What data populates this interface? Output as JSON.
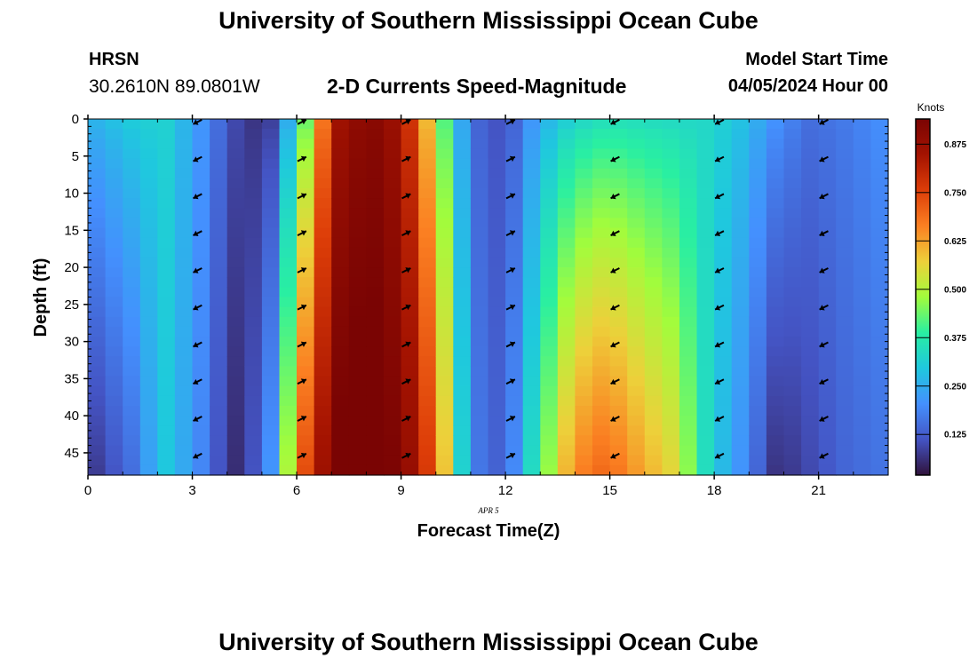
{
  "header": {
    "title": "University of Southern Mississippi Ocean Cube",
    "footer_title": "University of Southern Mississippi Ocean Cube",
    "station": "HRSN",
    "coords": "30.2610N  89.0801W",
    "subtitle": "2-D Currents Speed-Magnitude",
    "model_start_label": "Model Start Time",
    "model_start_value": "04/05/2024 Hour 00"
  },
  "chart_data": {
    "type": "heatmap",
    "title": "2-D Currents Speed-Magnitude",
    "xlabel": "Forecast Time(Z)",
    "ylabel": "Depth (ft)",
    "date_label": "APR 5",
    "xlim": [
      0,
      23
    ],
    "ylim": [
      0,
      48
    ],
    "x_ticks": [
      "0",
      "3",
      "6",
      "9",
      "12",
      "15",
      "18",
      "21"
    ],
    "y_ticks": [
      "0",
      "5",
      "10",
      "15",
      "20",
      "25",
      "30",
      "35",
      "40",
      "45"
    ],
    "hours": [
      0,
      1,
      2,
      3,
      4,
      5,
      6,
      7,
      8,
      9,
      10,
      11,
      12,
      13,
      14,
      15,
      16,
      17,
      18,
      19,
      20,
      21,
      22,
      23
    ],
    "depths": [
      0,
      5,
      10,
      15,
      20,
      25,
      30,
      35,
      40,
      45
    ],
    "speed_knots_by_hour_surface": [
      0.26,
      0.3,
      0.32,
      0.22,
      0.1,
      0.05,
      0.38,
      0.85,
      0.92,
      0.85,
      0.5,
      0.15,
      0.1,
      0.25,
      0.33,
      0.36,
      0.35,
      0.34,
      0.33,
      0.28,
      0.2,
      0.15,
      0.17,
      0.2
    ],
    "speed_knots_by_hour_bottom": [
      0.08,
      0.15,
      0.3,
      0.2,
      0.05,
      0.15,
      0.7,
      0.95,
      0.97,
      0.92,
      0.7,
      0.18,
      0.12,
      0.4,
      0.65,
      0.7,
      0.62,
      0.55,
      0.32,
      0.2,
      0.06,
      0.1,
      0.14,
      0.16
    ],
    "arrow_hours": [
      3,
      6,
      9,
      12,
      15,
      18,
      21
    ],
    "arrow_directions": [
      "SW",
      "NE",
      "NE",
      "NE",
      "SW",
      "SW",
      "SW"
    ],
    "colorbar": {
      "label": "Knots",
      "ticks": [
        "0.125",
        "0.250",
        "0.375",
        "0.500",
        "0.625",
        "0.750",
        "0.875"
      ],
      "range": [
        0.02,
        0.94
      ]
    }
  }
}
